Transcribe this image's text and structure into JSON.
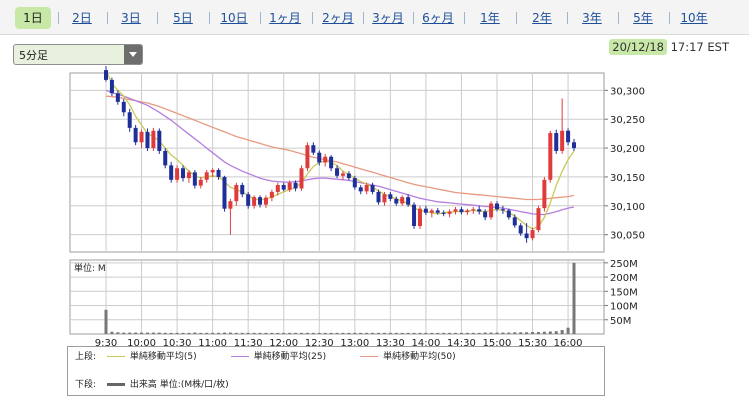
{
  "tabs": [
    {
      "label": "1日",
      "active": true
    },
    {
      "label": "2日",
      "active": false
    },
    {
      "label": "3日",
      "active": false
    },
    {
      "label": "5日",
      "active": false
    },
    {
      "label": "10日",
      "active": false
    },
    {
      "label": "1ヶ月",
      "active": false
    },
    {
      "label": "2ヶ月",
      "active": false
    },
    {
      "label": "3ヶ月",
      "active": false
    },
    {
      "label": "6ヶ月",
      "active": false
    },
    {
      "label": "1年",
      "active": false
    },
    {
      "label": "2年",
      "active": false
    },
    {
      "label": "3年",
      "active": false
    },
    {
      "label": "5年",
      "active": false
    },
    {
      "label": "10年",
      "active": false
    }
  ],
  "interval_select": {
    "value": "5分足"
  },
  "timestamp": {
    "date": "20/12/18",
    "time": "17:17 EST"
  },
  "colors": {
    "up": "#e03b3b",
    "down": "#1f2f9a",
    "ma5": "#c9c956",
    "ma25": "#b57de0",
    "ma50": "#e79a80",
    "volume": "#777777",
    "grid": "#cccccc",
    "accent": "#c8e8a8"
  },
  "legend": {
    "upper_label": "上段:",
    "lower_label": "下段:",
    "items": [
      {
        "label": "単純移動平均(5)",
        "color": "#c9c956"
      },
      {
        "label": "単純移動平均(25)",
        "color": "#b57de0"
      },
      {
        "label": "単純移動平均(50)",
        "color": "#e79a80"
      }
    ],
    "volume_label": "出来高 単位:(M株/口/枚)",
    "volume_color": "#666666"
  },
  "chart_data": [
    {
      "type": "candlestick",
      "ylim": [
        30020,
        30330
      ],
      "yticks": [
        "30,050",
        "30,100",
        "30,150",
        "30,200",
        "30,250",
        "30,300"
      ],
      "ytick_values": [
        30050,
        30100,
        30150,
        30200,
        30250,
        30300
      ],
      "xticks": [
        "9:30",
        "10:00",
        "10:30",
        "11:00",
        "11:30",
        "12:00",
        "12:30",
        "13:00",
        "13:30",
        "14:00",
        "14:30",
        "15:00",
        "15:30",
        "16:00"
      ],
      "grid": true,
      "candles": [
        [
          30335,
          30342,
          30315,
          30318
        ],
        [
          30318,
          30322,
          30290,
          30295
        ],
        [
          30295,
          30300,
          30275,
          30280
        ],
        [
          30280,
          30285,
          30255,
          30262
        ],
        [
          30262,
          30268,
          30228,
          30235
        ],
        [
          30235,
          30240,
          30205,
          30210
        ],
        [
          30210,
          30232,
          30200,
          30228
        ],
        [
          30228,
          30234,
          30195,
          30200
        ],
        [
          30200,
          30235,
          30195,
          30230
        ],
        [
          30230,
          30234,
          30190,
          30195
        ],
        [
          30195,
          30200,
          30165,
          30170
        ],
        [
          30170,
          30176,
          30140,
          30145
        ],
        [
          30145,
          30170,
          30140,
          30165
        ],
        [
          30165,
          30170,
          30142,
          30148
        ],
        [
          30148,
          30162,
          30140,
          30158
        ],
        [
          30158,
          30162,
          30130,
          30135
        ],
        [
          30135,
          30150,
          30130,
          30145
        ],
        [
          30145,
          30162,
          30140,
          30158
        ],
        [
          30158,
          30165,
          30150,
          30162
        ],
        [
          30162,
          30165,
          30145,
          30150
        ],
        [
          30150,
          30152,
          30090,
          30095
        ],
        [
          30095,
          30112,
          30050,
          30108
        ],
        [
          30108,
          30140,
          30100,
          30136
        ],
        [
          30136,
          30140,
          30115,
          30120
        ],
        [
          30120,
          30124,
          30095,
          30100
        ],
        [
          30100,
          30118,
          30095,
          30115
        ],
        [
          30115,
          30118,
          30097,
          30102
        ],
        [
          30102,
          30118,
          30096,
          30114
        ],
        [
          30114,
          30128,
          30108,
          30124
        ],
        [
          30124,
          30140,
          30118,
          30136
        ],
        [
          30136,
          30140,
          30125,
          30128
        ],
        [
          30128,
          30144,
          30124,
          30140
        ],
        [
          30140,
          30144,
          30125,
          30130
        ],
        [
          30130,
          30170,
          30126,
          30165
        ],
        [
          30165,
          30210,
          30160,
          30205
        ],
        [
          30205,
          30210,
          30188,
          30192
        ],
        [
          30192,
          30196,
          30170,
          30175
        ],
        [
          30175,
          30190,
          30168,
          30185
        ],
        [
          30185,
          30188,
          30160,
          30165
        ],
        [
          30165,
          30170,
          30148,
          30152
        ],
        [
          30152,
          30160,
          30145,
          30156
        ],
        [
          30156,
          30160,
          30144,
          30148
        ],
        [
          30148,
          30152,
          30128,
          30132
        ],
        [
          30132,
          30136,
          30120,
          30125
        ],
        [
          30125,
          30140,
          30120,
          30136
        ],
        [
          30136,
          30140,
          30120,
          30124
        ],
        [
          30124,
          30128,
          30102,
          30106
        ],
        [
          30106,
          30124,
          30100,
          30120
        ],
        [
          30120,
          30124,
          30108,
          30112
        ],
        [
          30112,
          30116,
          30100,
          30104
        ],
        [
          30104,
          30118,
          30100,
          30115
        ],
        [
          30115,
          30120,
          30098,
          30102
        ],
        [
          30102,
          30106,
          30060,
          30065
        ],
        [
          30065,
          30100,
          30060,
          30095
        ],
        [
          30095,
          30100,
          30084,
          30088
        ],
        [
          30088,
          30095,
          30080,
          30092
        ],
        [
          30092,
          30096,
          30085,
          30088
        ],
        [
          30088,
          30092,
          30082,
          30086
        ],
        [
          30086,
          30094,
          30080,
          30090
        ],
        [
          30090,
          30098,
          30085,
          30094
        ],
        [
          30094,
          30098,
          30085,
          30089
        ],
        [
          30089,
          30095,
          30084,
          30092
        ],
        [
          30092,
          30098,
          30086,
          30094
        ],
        [
          30094,
          30100,
          30085,
          30090
        ],
        [
          30090,
          30094,
          30075,
          30080
        ],
        [
          30080,
          30108,
          30076,
          30104
        ],
        [
          30104,
          30108,
          30090,
          30094
        ],
        [
          30094,
          30100,
          30086,
          30092
        ],
        [
          30092,
          30095,
          30076,
          30080
        ],
        [
          30080,
          30085,
          30062,
          30066
        ],
        [
          30066,
          30070,
          30048,
          30052
        ],
        [
          30052,
          30070,
          30036,
          30044
        ],
        [
          30044,
          30062,
          30040,
          30058
        ],
        [
          30058,
          30100,
          30054,
          30096
        ],
        [
          30096,
          30150,
          30090,
          30145
        ],
        [
          30145,
          30230,
          30140,
          30226
        ],
        [
          30226,
          30232,
          30190,
          30195
        ],
        [
          30195,
          30286,
          30190,
          30230
        ],
        [
          30230,
          30234,
          30205,
          30210
        ],
        [
          30210,
          30216,
          30195,
          30200
        ]
      ],
      "ma5": [
        30335,
        30312,
        30300,
        30290,
        30275,
        30255,
        30240,
        30225,
        30220,
        30212,
        30200,
        30188,
        30180,
        30170,
        30160,
        30152,
        30148,
        30150,
        30152,
        30150,
        30142,
        30132,
        30128,
        30124,
        30118,
        30112,
        30110,
        30112,
        30115,
        30120,
        30124,
        30128,
        30132,
        30140,
        30155,
        30168,
        30175,
        30178,
        30175,
        30170,
        30160,
        30154,
        30148,
        30142,
        30138,
        30132,
        30126,
        30120,
        30116,
        30112,
        30108,
        30104,
        30096,
        30092,
        30090,
        30088,
        30086,
        30088,
        30089,
        30090,
        30090,
        30091,
        30092,
        30091,
        30090,
        30092,
        30094,
        30092,
        30088,
        30082,
        30074,
        30066,
        30060,
        30064,
        30080,
        30105,
        30135,
        30160,
        30180,
        30195
      ],
      "ma25": [
        30300,
        30296,
        30293,
        30290,
        30286,
        30282,
        30278,
        30274,
        30268,
        30262,
        30255,
        30248,
        30240,
        30232,
        30224,
        30216,
        30208,
        30200,
        30192,
        30184,
        30176,
        30170,
        30165,
        30160,
        30156,
        30152,
        30148,
        30145,
        30143,
        30142,
        30141,
        30141,
        30142,
        30143,
        30145,
        30147,
        30148,
        30148,
        30147,
        30146,
        30145,
        30144,
        30142,
        30140,
        30138,
        30136,
        30134,
        30131,
        30128,
        30125,
        30122,
        30119,
        30116,
        30113,
        30111,
        30109,
        30107,
        30106,
        30105,
        30104,
        30103,
        30102,
        30101,
        30100,
        30099,
        30098,
        30097,
        30096,
        30094,
        30092,
        30090,
        30088,
        30086,
        30085,
        30085,
        30087,
        30090,
        30093,
        30096,
        30098
      ],
      "ma50": [
        30290,
        30289,
        30288,
        30286,
        30284,
        30282,
        30280,
        30278,
        30275,
        30272,
        30268,
        30264,
        30260,
        30256,
        30252,
        30248,
        30244,
        30240,
        30236,
        30232,
        30228,
        30224,
        30220,
        30217,
        30214,
        30211,
        30208,
        30205,
        30202,
        30200,
        30198,
        30196,
        30193,
        30190,
        30187,
        30184,
        30182,
        30180,
        30178,
        30176,
        30173,
        30170,
        30167,
        30164,
        30161,
        30158,
        30155,
        30152,
        30149,
        30146,
        30143,
        30140,
        30137,
        30135,
        30133,
        30131,
        30129,
        30127,
        30125,
        30123,
        30122,
        30121,
        30120,
        30119,
        30118,
        30117,
        30116,
        30115,
        30114,
        30113,
        30112,
        30111,
        30111,
        30111,
        30112,
        30113,
        30114,
        30115,
        30116,
        30118
      ]
    },
    {
      "type": "bar",
      "unit_label": "単位: M",
      "ylim": [
        0,
        260
      ],
      "yticks": [
        "50M",
        "100M",
        "150M",
        "200M",
        "250M"
      ],
      "ytick_values": [
        50,
        100,
        150,
        200,
        250
      ],
      "values": [
        85,
        8,
        6,
        5,
        5,
        5,
        5,
        5,
        5,
        5,
        4,
        4,
        4,
        4,
        4,
        5,
        4,
        4,
        4,
        4,
        5,
        5,
        4,
        4,
        4,
        4,
        4,
        4,
        4,
        4,
        4,
        4,
        4,
        4,
        4,
        4,
        4,
        4,
        4,
        4,
        4,
        4,
        4,
        4,
        4,
        4,
        4,
        4,
        4,
        4,
        4,
        4,
        4,
        4,
        4,
        4,
        4,
        4,
        4,
        4,
        4,
        4,
        4,
        4,
        5,
        5,
        5,
        5,
        5,
        6,
        6,
        6,
        7,
        7,
        8,
        9,
        10,
        14,
        22,
        250
      ]
    }
  ]
}
